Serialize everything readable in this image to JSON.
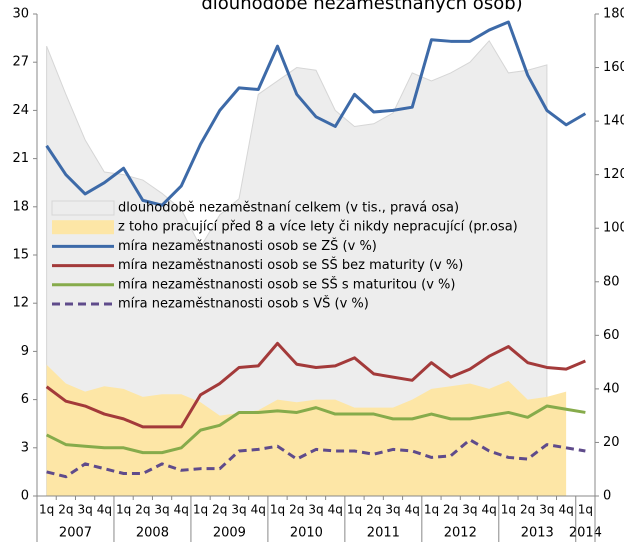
{
  "chart_data": {
    "type": "line",
    "title": "dlouhodobě nezaměstnaných osob)",
    "categories": [
      "1q",
      "2q",
      "3q",
      "4q",
      "1q",
      "2q",
      "3q",
      "4q",
      "1q",
      "2q",
      "3q",
      "4q",
      "1q",
      "2q",
      "3q",
      "4q",
      "1q",
      "2q",
      "3q",
      "4q",
      "1q",
      "2q",
      "3q",
      "4q",
      "1q",
      "2q",
      "3q",
      "4q",
      "1q"
    ],
    "years": [
      "2007",
      "2008",
      "2009",
      "2010",
      "2011",
      "2012",
      "2013",
      "2014"
    ],
    "ylim": [
      0,
      30
    ],
    "yticks": [
      0,
      3,
      6,
      9,
      12,
      15,
      18,
      21,
      24,
      27,
      30
    ],
    "y2lim": [
      0,
      180
    ],
    "y2ticks": [
      0,
      20,
      40,
      60,
      80,
      100,
      120,
      140,
      160,
      180
    ],
    "series": [
      {
        "name": "dlouhodobě nezaměstnaní celkem (v tis., pravá osa)",
        "kind": "area",
        "axis": "y2",
        "color": "#ededed",
        "values": [
          168,
          150,
          133,
          121,
          120,
          118,
          113,
          107,
          93,
          105,
          111,
          150,
          155,
          160,
          159,
          144,
          138,
          139,
          143,
          158,
          155,
          158,
          162,
          170,
          158,
          159,
          161,
          null,
          null
        ]
      },
      {
        "name": "z toho pracující před 8 a více lety či nikdy nepracující (pr.osa)",
        "kind": "area",
        "axis": "y2",
        "color": "#fde6a6",
        "values": [
          49,
          42,
          39,
          41,
          40,
          37,
          38,
          38,
          35,
          30,
          31,
          32,
          36,
          35,
          36,
          36,
          33,
          33,
          33,
          36,
          40,
          41,
          42,
          40,
          43,
          36,
          37,
          39,
          null
        ]
      },
      {
        "name": "míra nezaměstnanosti osob se ZŠ (v %)",
        "kind": "line",
        "color": "#3d6aa8",
        "values": [
          21.8,
          20.0,
          18.8,
          19.5,
          20.4,
          18.4,
          18.1,
          19.3,
          21.9,
          24.0,
          25.4,
          25.3,
          28.0,
          25.0,
          23.6,
          23.0,
          25.0,
          23.9,
          24.0,
          24.2,
          28.4,
          28.3,
          28.3,
          29.0,
          29.5,
          26.2,
          24.0,
          23.1,
          23.8
        ]
      },
      {
        "name": "míra nezaměstnanosti osob se SŠ bez maturity (v %)",
        "kind": "line",
        "color": "#a33a3a",
        "values": [
          6.8,
          5.9,
          5.6,
          5.1,
          4.8,
          4.3,
          4.3,
          4.3,
          6.3,
          7.0,
          8.0,
          8.1,
          9.5,
          8.2,
          8.0,
          8.1,
          8.6,
          7.6,
          7.4,
          7.2,
          8.3,
          7.4,
          7.9,
          8.7,
          9.3,
          8.3,
          8.0,
          7.9,
          8.4
        ]
      },
      {
        "name": "míra nezaměstnanosti osob se SŠ s maturitou (v %)",
        "kind": "line",
        "color": "#86ab4b",
        "values": [
          3.8,
          3.2,
          3.1,
          3.0,
          3.0,
          2.7,
          2.7,
          3.0,
          4.1,
          4.4,
          5.2,
          5.2,
          5.3,
          5.2,
          5.5,
          5.1,
          5.1,
          5.1,
          4.8,
          4.8,
          5.1,
          4.8,
          4.8,
          5.0,
          5.2,
          4.9,
          5.6,
          5.4,
          5.2
        ]
      },
      {
        "name": "míra nezaměstnanosti osob s VŠ (v %)",
        "kind": "line",
        "dash": true,
        "color": "#5f4b8b",
        "values": [
          1.5,
          1.2,
          2.0,
          1.7,
          1.4,
          1.4,
          2.0,
          1.6,
          1.7,
          1.7,
          2.8,
          2.9,
          3.1,
          2.3,
          2.9,
          2.8,
          2.8,
          2.6,
          2.9,
          2.8,
          2.4,
          2.5,
          3.5,
          2.8,
          2.4,
          2.3,
          3.2,
          3.0,
          2.8
        ]
      }
    ]
  }
}
